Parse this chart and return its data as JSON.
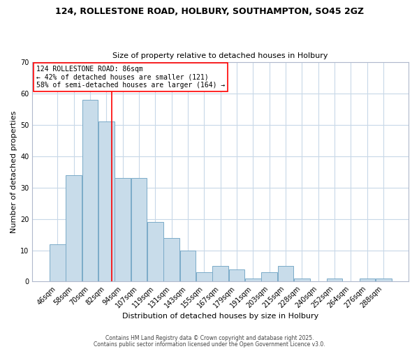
{
  "title": "124, ROLLESTONE ROAD, HOLBURY, SOUTHAMPTON, SO45 2GZ",
  "subtitle": "Size of property relative to detached houses in Holbury",
  "xlabel": "Distribution of detached houses by size in Holbury",
  "ylabel": "Number of detached properties",
  "footer_line1": "Contains HM Land Registry data © Crown copyright and database right 2025.",
  "footer_line2": "Contains public sector information licensed under the Open Government Licence v3.0.",
  "bin_labels": [
    "46sqm",
    "58sqm",
    "70sqm",
    "82sqm",
    "94sqm",
    "107sqm",
    "119sqm",
    "131sqm",
    "143sqm",
    "155sqm",
    "167sqm",
    "179sqm",
    "191sqm",
    "203sqm",
    "215sqm",
    "228sqm",
    "240sqm",
    "252sqm",
    "264sqm",
    "276sqm",
    "288sqm"
  ],
  "bin_starts": [
    46,
    58,
    70,
    82,
    94,
    107,
    119,
    131,
    143,
    155,
    167,
    179,
    191,
    203,
    215,
    228,
    240,
    252,
    264,
    276,
    288
  ],
  "bar_heights": [
    12,
    34,
    58,
    51,
    33,
    33,
    19,
    14,
    10,
    3,
    5,
    4,
    1,
    3,
    5,
    1,
    0,
    1,
    0,
    1,
    1
  ],
  "bar_color": "#c8dcea",
  "bar_edge_color": "#7aaac8",
  "vline_sqm": 86,
  "vline_color": "red",
  "ylim": [
    0,
    70
  ],
  "yticks": [
    0,
    10,
    20,
    30,
    40,
    50,
    60,
    70
  ],
  "annotation_line1": "124 ROLLESTONE ROAD: 86sqm",
  "annotation_line2": "← 42% of detached houses are smaller (121)",
  "annotation_line3": "58% of semi-detached houses are larger (164) →",
  "annotation_box_facecolor": "white",
  "annotation_box_edgecolor": "red",
  "bg_color": "white",
  "grid_color": "#c8d8e8",
  "spine_color": "#b0b8cc",
  "title_fontsize": 9,
  "subtitle_fontsize": 8,
  "axis_label_fontsize": 8,
  "tick_fontsize": 7,
  "annotation_fontsize": 7,
  "footer_fontsize": 5.5
}
